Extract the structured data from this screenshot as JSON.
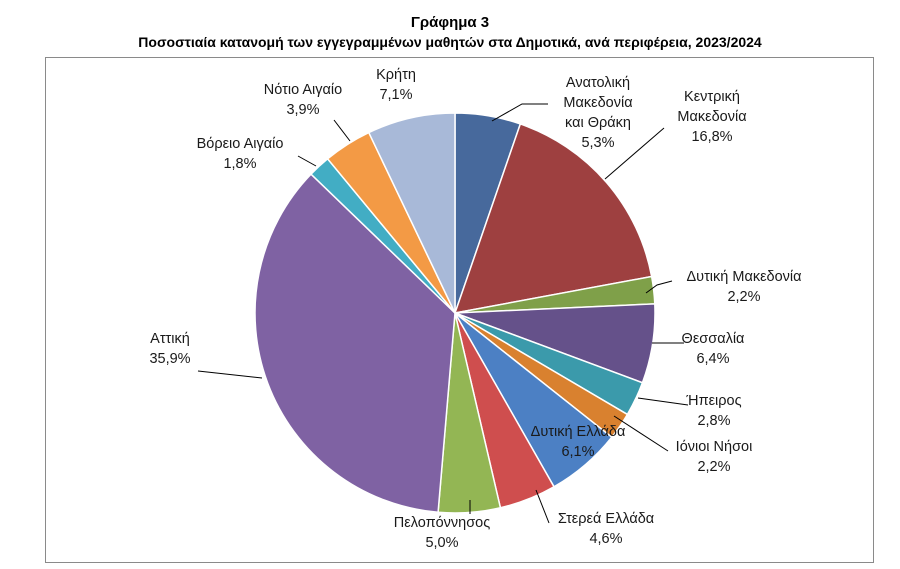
{
  "chart_data": {
    "type": "pie",
    "title": "Γράφημα 3",
    "subtitle": "Ποσοστιαία κατανομή των εγγεγραμμένων μαθητών στα Δημοτικά, ανά περιφέρεια, 2023/2024",
    "slices": [
      {
        "name": "Ανατολική Μακεδονία και Θράκη",
        "value": 5.3,
        "label": "5,3%",
        "color": "#47699c"
      },
      {
        "name": "Κεντρική Μακεδονία",
        "value": 16.8,
        "label": "16,8%",
        "color": "#9e4040"
      },
      {
        "name": "Δυτική Μακεδονία",
        "value": 2.2,
        "label": "2,2%",
        "color": "#7fa049"
      },
      {
        "name": "Θεσσαλία",
        "value": 6.4,
        "label": "6,4%",
        "color": "#65518a"
      },
      {
        "name": "Ήπειρος",
        "value": 2.8,
        "label": "2,8%",
        "color": "#3b9aab"
      },
      {
        "name": "Ιόνιοι Νήσοι",
        "value": 2.2,
        "label": "2,2%",
        "color": "#d9812f"
      },
      {
        "name": "Δυτική Ελλάδα",
        "value": 6.1,
        "label": "6,1%",
        "color": "#4c80c4"
      },
      {
        "name": "Στερεά Ελλάδα",
        "value": 4.6,
        "label": "4,6%",
        "color": "#cf4e4e"
      },
      {
        "name": "Πελοπόννησος",
        "value": 5.0,
        "label": "5,0%",
        "color": "#93b654"
      },
      {
        "name": "Αττική",
        "value": 35.9,
        "label": "35,9%",
        "color": "#7f62a3"
      },
      {
        "name": "Βόρειο Αιγαίο",
        "value": 1.8,
        "label": "1,8%",
        "color": "#42adc4"
      },
      {
        "name": "Νότιο Αιγαίο",
        "value": 3.9,
        "label": "3,9%",
        "color": "#f39a45"
      },
      {
        "name": "Κρήτη",
        "value": 7.1,
        "label": "7,1%",
        "color": "#a8b9d8"
      }
    ]
  }
}
